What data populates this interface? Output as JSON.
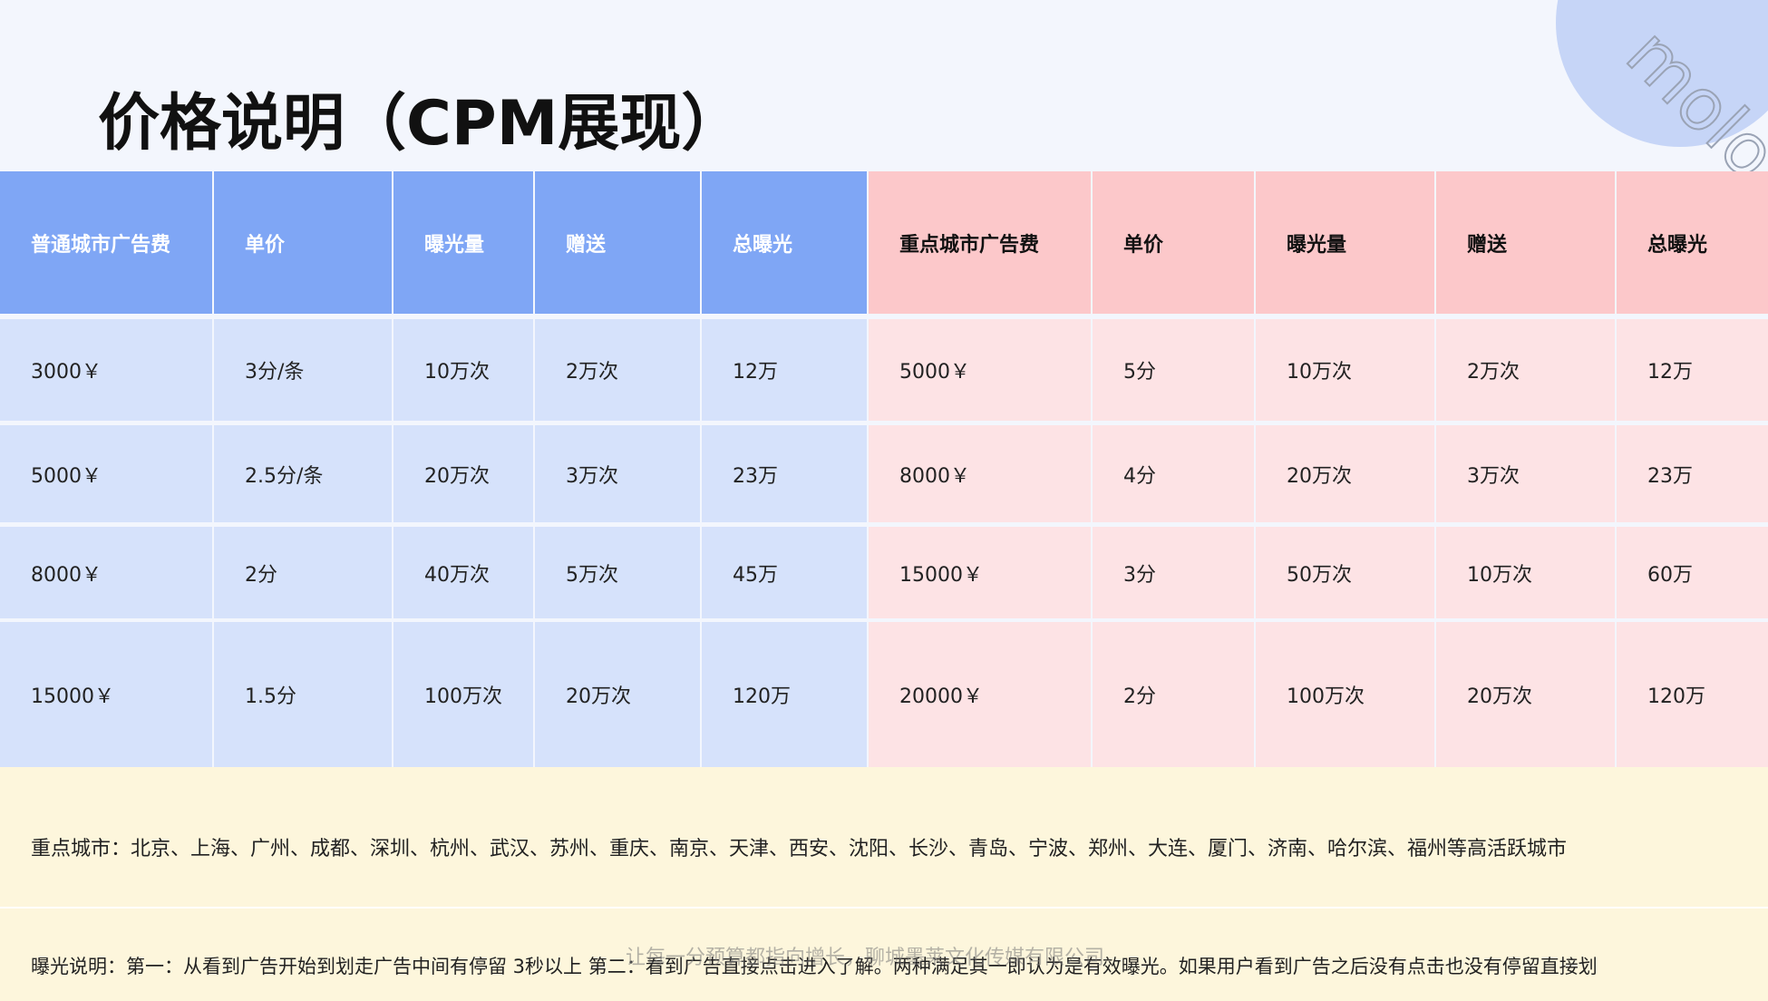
{
  "header": {
    "title": "价格说明（CPM展现）",
    "logo": "molo"
  },
  "table": {
    "headers": [
      "普通城市广告费",
      "单价",
      "曝光量",
      "赠送",
      "总曝光",
      "重点城市广告费",
      "单价",
      "曝光量",
      "赠送",
      "总曝光"
    ],
    "rows": [
      [
        "3000￥",
        "3分/条",
        "10万次",
        "2万次",
        "12万",
        "5000￥",
        "5分",
        "10万次",
        "2万次",
        "12万"
      ],
      [
        "5000￥",
        "2.5分/条",
        "20万次",
        "3万次",
        "23万",
        "8000￥",
        "4分",
        "20万次",
        "3万次",
        "23万"
      ],
      [
        "8000￥",
        "2分",
        "40万次",
        "5万次",
        "45万",
        "15000￥",
        "3分",
        "50万次",
        "10万次",
        "60万"
      ],
      [
        "15000￥",
        "1.5分",
        "100万次",
        "20万次",
        "120万",
        "20000￥",
        "2分",
        "100万次",
        "20万次",
        "120万"
      ]
    ]
  },
  "notes": [
    "重点城市：北京、上海、广州、成都、深圳、杭州、武汉、苏州、重庆、南京、天津、西安、沈阳、长沙、青岛、宁波、郑州、大连、厦门、济南、哈尔滨、福州等高活跃城市",
    "曝光说明：第一：从看到广告开始到划走广告中间有停留 3秒以上 第二：看到广告直接点击进入了解。两种满足其一即认为是有效曝光。如果用户看到广告之后没有点击也没有停留直接划"
  ],
  "footer": "让每一分预算都指向增长，聊城墨莱文化传媒有限公司"
}
